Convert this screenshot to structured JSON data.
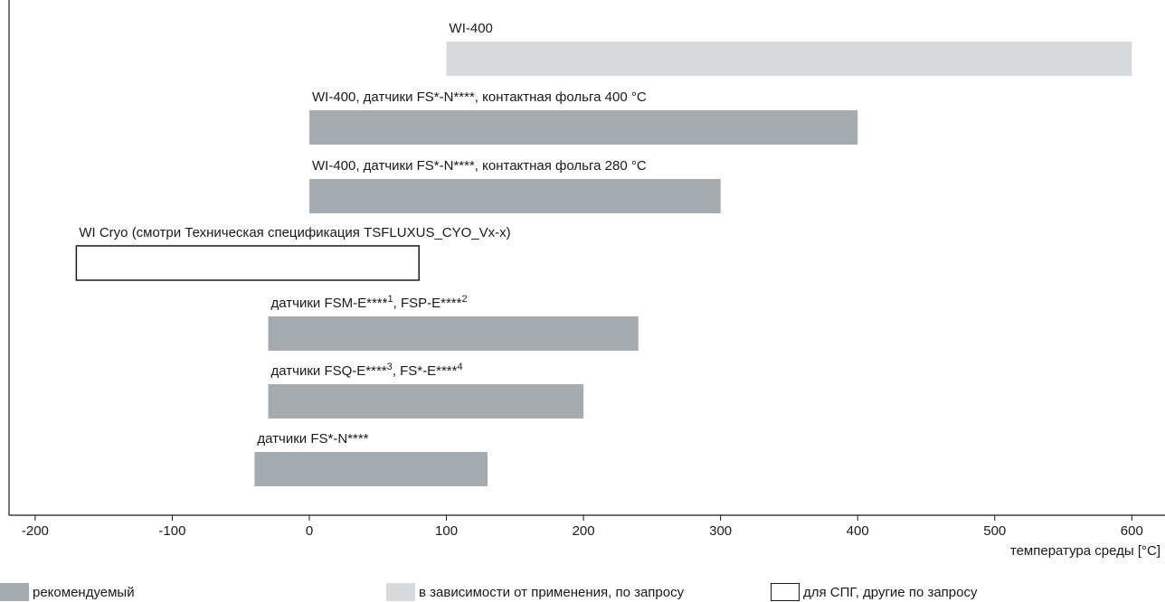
{
  "chart_data": {
    "type": "bar",
    "orientation": "horizontal-range",
    "xlabel": "температура среды [°C]",
    "xlim": [
      -210,
      625
    ],
    "xticks": [
      -200,
      -100,
      0,
      100,
      200,
      300,
      400,
      500,
      600
    ],
    "bars": [
      {
        "label": "WI-400",
        "min": 100,
        "max": 600,
        "category": "app"
      },
      {
        "label": "WI-400, датчики FS*-N****, контактная фольга 400 °C",
        "min": 0,
        "max": 400,
        "category": "rec"
      },
      {
        "label": "WI-400, датчики FS*-N****, контактная фольга 280 °C",
        "min": 0,
        "max": 300,
        "category": "rec"
      },
      {
        "label": "WI Cryo (смотри Техническая спецификация TSFLUXUS_CYO_Vx-x)",
        "min": -170,
        "max": 80,
        "category": "lng"
      },
      {
        "label": "датчики FSM-E****",
        "sup1": "1",
        "mid": ", FSP-E****",
        "sup2": "2",
        "min": -30,
        "max": 240,
        "category": "rec"
      },
      {
        "label": "датчики FSQ-E****",
        "sup1": "3",
        "mid": ", FS*-E****",
        "sup2": "4",
        "min": -30,
        "max": 200,
        "category": "rec"
      },
      {
        "label": "датчики FS*-N****",
        "min": -40,
        "max": 130,
        "category": "rec"
      }
    ],
    "legend": [
      {
        "key": "rec",
        "label": "рекомендуемый"
      },
      {
        "key": "app",
        "label": "в зависимости от применения, по запросу"
      },
      {
        "key": "lng",
        "label": "для СПГ, другие по запросу"
      }
    ],
    "colors": {
      "rec": "#a6abaf",
      "app": "#d6dadc",
      "lng": "#ffffff",
      "outline": "#1a1a1a"
    },
    "grid": false,
    "legend_position": "bottom"
  }
}
